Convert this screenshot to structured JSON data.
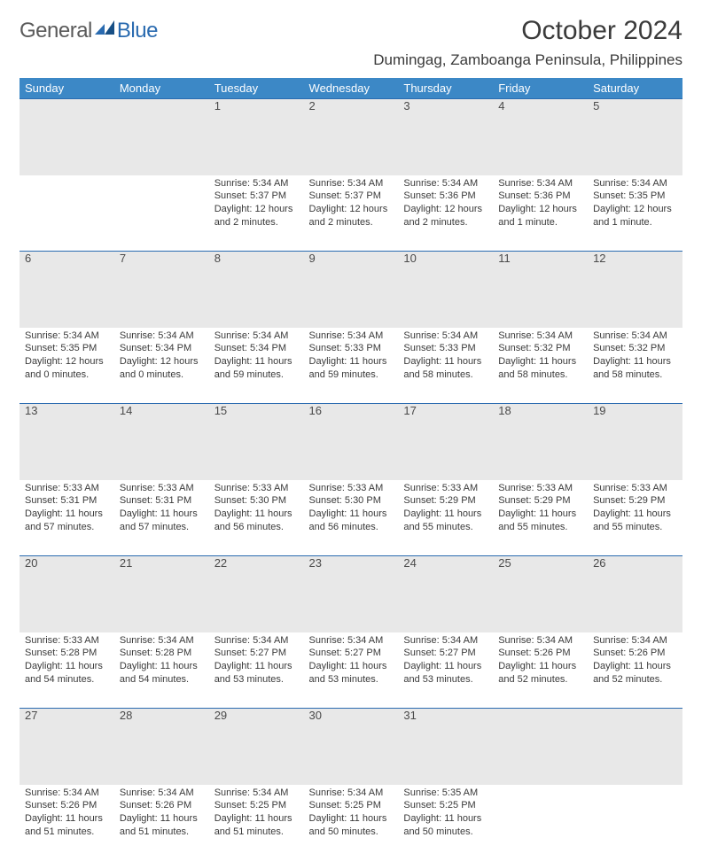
{
  "brand": {
    "part1": "General",
    "part2": "Blue"
  },
  "title": {
    "month_year": "October 2024",
    "location": "Dumingag, Zamboanga Peninsula, Philippines"
  },
  "colors": {
    "header_bg": "#3c88c6",
    "header_fg": "#ffffff",
    "row_divider": "#2a6bb0",
    "daynum_bg": "#e8e8e8",
    "body_text": "#3a3a3a",
    "logo_gray": "#5a5a5a",
    "logo_blue": "#2a6bb0"
  },
  "dow": [
    "Sunday",
    "Monday",
    "Tuesday",
    "Wednesday",
    "Thursday",
    "Friday",
    "Saturday"
  ],
  "weeks": [
    [
      {
        "n": "",
        "sr": "",
        "ss": "",
        "dl": ""
      },
      {
        "n": "",
        "sr": "",
        "ss": "",
        "dl": ""
      },
      {
        "n": "1",
        "sr": "5:34 AM",
        "ss": "5:37 PM",
        "dl": "12 hours and 2 minutes."
      },
      {
        "n": "2",
        "sr": "5:34 AM",
        "ss": "5:37 PM",
        "dl": "12 hours and 2 minutes."
      },
      {
        "n": "3",
        "sr": "5:34 AM",
        "ss": "5:36 PM",
        "dl": "12 hours and 2 minutes."
      },
      {
        "n": "4",
        "sr": "5:34 AM",
        "ss": "5:36 PM",
        "dl": "12 hours and 1 minute."
      },
      {
        "n": "5",
        "sr": "5:34 AM",
        "ss": "5:35 PM",
        "dl": "12 hours and 1 minute."
      }
    ],
    [
      {
        "n": "6",
        "sr": "5:34 AM",
        "ss": "5:35 PM",
        "dl": "12 hours and 0 minutes."
      },
      {
        "n": "7",
        "sr": "5:34 AM",
        "ss": "5:34 PM",
        "dl": "12 hours and 0 minutes."
      },
      {
        "n": "8",
        "sr": "5:34 AM",
        "ss": "5:34 PM",
        "dl": "11 hours and 59 minutes."
      },
      {
        "n": "9",
        "sr": "5:34 AM",
        "ss": "5:33 PM",
        "dl": "11 hours and 59 minutes."
      },
      {
        "n": "10",
        "sr": "5:34 AM",
        "ss": "5:33 PM",
        "dl": "11 hours and 58 minutes."
      },
      {
        "n": "11",
        "sr": "5:34 AM",
        "ss": "5:32 PM",
        "dl": "11 hours and 58 minutes."
      },
      {
        "n": "12",
        "sr": "5:34 AM",
        "ss": "5:32 PM",
        "dl": "11 hours and 58 minutes."
      }
    ],
    [
      {
        "n": "13",
        "sr": "5:33 AM",
        "ss": "5:31 PM",
        "dl": "11 hours and 57 minutes."
      },
      {
        "n": "14",
        "sr": "5:33 AM",
        "ss": "5:31 PM",
        "dl": "11 hours and 57 minutes."
      },
      {
        "n": "15",
        "sr": "5:33 AM",
        "ss": "5:30 PM",
        "dl": "11 hours and 56 minutes."
      },
      {
        "n": "16",
        "sr": "5:33 AM",
        "ss": "5:30 PM",
        "dl": "11 hours and 56 minutes."
      },
      {
        "n": "17",
        "sr": "5:33 AM",
        "ss": "5:29 PM",
        "dl": "11 hours and 55 minutes."
      },
      {
        "n": "18",
        "sr": "5:33 AM",
        "ss": "5:29 PM",
        "dl": "11 hours and 55 minutes."
      },
      {
        "n": "19",
        "sr": "5:33 AM",
        "ss": "5:29 PM",
        "dl": "11 hours and 55 minutes."
      }
    ],
    [
      {
        "n": "20",
        "sr": "5:33 AM",
        "ss": "5:28 PM",
        "dl": "11 hours and 54 minutes."
      },
      {
        "n": "21",
        "sr": "5:34 AM",
        "ss": "5:28 PM",
        "dl": "11 hours and 54 minutes."
      },
      {
        "n": "22",
        "sr": "5:34 AM",
        "ss": "5:27 PM",
        "dl": "11 hours and 53 minutes."
      },
      {
        "n": "23",
        "sr": "5:34 AM",
        "ss": "5:27 PM",
        "dl": "11 hours and 53 minutes."
      },
      {
        "n": "24",
        "sr": "5:34 AM",
        "ss": "5:27 PM",
        "dl": "11 hours and 53 minutes."
      },
      {
        "n": "25",
        "sr": "5:34 AM",
        "ss": "5:26 PM",
        "dl": "11 hours and 52 minutes."
      },
      {
        "n": "26",
        "sr": "5:34 AM",
        "ss": "5:26 PM",
        "dl": "11 hours and 52 minutes."
      }
    ],
    [
      {
        "n": "27",
        "sr": "5:34 AM",
        "ss": "5:26 PM",
        "dl": "11 hours and 51 minutes."
      },
      {
        "n": "28",
        "sr": "5:34 AM",
        "ss": "5:26 PM",
        "dl": "11 hours and 51 minutes."
      },
      {
        "n": "29",
        "sr": "5:34 AM",
        "ss": "5:25 PM",
        "dl": "11 hours and 51 minutes."
      },
      {
        "n": "30",
        "sr": "5:34 AM",
        "ss": "5:25 PM",
        "dl": "11 hours and 50 minutes."
      },
      {
        "n": "31",
        "sr": "5:35 AM",
        "ss": "5:25 PM",
        "dl": "11 hours and 50 minutes."
      },
      {
        "n": "",
        "sr": "",
        "ss": "",
        "dl": ""
      },
      {
        "n": "",
        "sr": "",
        "ss": "",
        "dl": ""
      }
    ]
  ],
  "labels": {
    "sunrise": "Sunrise:",
    "sunset": "Sunset:",
    "daylight": "Daylight:"
  }
}
